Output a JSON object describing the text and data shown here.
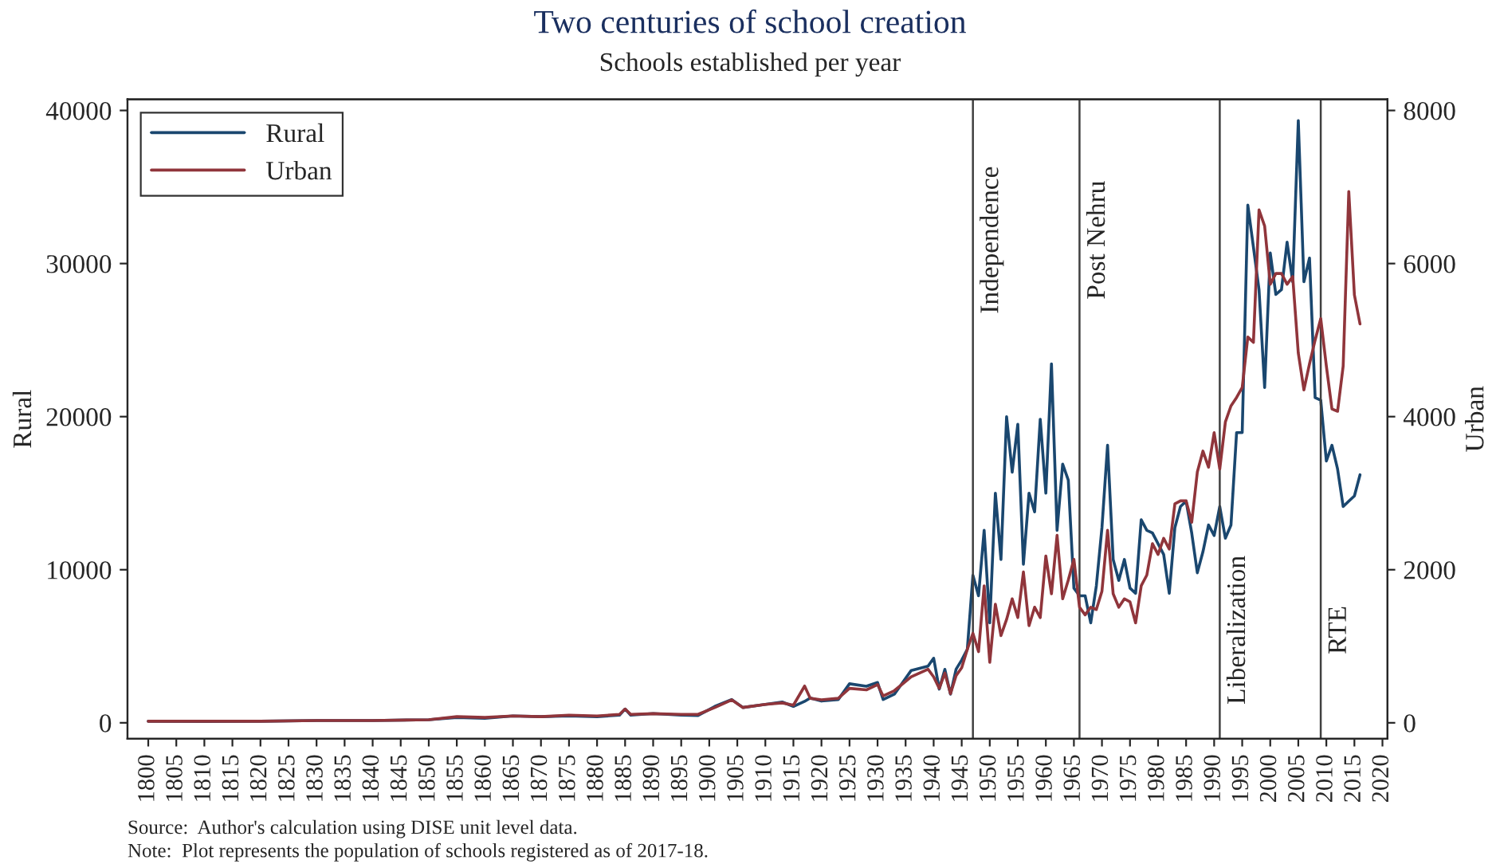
{
  "chart_data": {
    "type": "line",
    "title": "Two centuries of school creation",
    "subtitle": "Schools established per year",
    "ylabel": "Rural",
    "y2label": "Urban",
    "x": [
      1800,
      1810,
      1820,
      1830,
      1840,
      1850,
      1855,
      1860,
      1865,
      1870,
      1875,
      1880,
      1884,
      1885,
      1886,
      1890,
      1895,
      1898,
      1901,
      1904,
      1906,
      1910,
      1913,
      1915,
      1917,
      1918,
      1920,
      1923,
      1925,
      1928,
      1930,
      1931,
      1933,
      1936,
      1939,
      1940,
      1941,
      1942,
      1943,
      1944,
      1945,
      1946,
      1947,
      1948,
      1949,
      1950,
      1951,
      1952,
      1953,
      1954,
      1955,
      1956,
      1957,
      1958,
      1959,
      1960,
      1961,
      1962,
      1963,
      1964,
      1965,
      1966,
      1967,
      1968,
      1969,
      1970,
      1971,
      1972,
      1973,
      1974,
      1975,
      1976,
      1977,
      1978,
      1979,
      1980,
      1981,
      1982,
      1983,
      1984,
      1985,
      1986,
      1987,
      1988,
      1989,
      1990,
      1991,
      1992,
      1993,
      1994,
      1995,
      1996,
      1997,
      1998,
      1999,
      2000,
      2001,
      2002,
      2003,
      2004,
      2005,
      2006,
      2007,
      2008,
      2009,
      2010,
      2011,
      2012,
      2013,
      2014,
      2015,
      2016
    ],
    "series": [
      {
        "name": "Rural",
        "color": "#1a476f",
        "values": [
          100,
          80,
          100,
          150,
          150,
          200,
          350,
          300,
          450,
          400,
          450,
          400,
          500,
          900,
          500,
          600,
          500,
          480,
          1070,
          1520,
          1000,
          1200,
          1360,
          1070,
          1400,
          1620,
          1420,
          1520,
          2550,
          2390,
          2630,
          1520,
          1870,
          3420,
          3700,
          4220,
          2200,
          3490,
          1870,
          3500,
          4100,
          4800,
          9640,
          8300,
          12570,
          6530,
          15000,
          10670,
          20000,
          16370,
          19500,
          10360,
          15000,
          13780,
          19830,
          15000,
          23450,
          12570,
          16900,
          15850,
          8800,
          8300,
          8300,
          6530,
          8950,
          12750,
          18130,
          10670,
          9300,
          10670,
          8800,
          8460,
          13260,
          12570,
          12400,
          11700,
          11000,
          8460,
          12750,
          14130,
          14480,
          12400,
          9800,
          11170,
          12920,
          12230,
          14130,
          12060,
          12920,
          18960,
          18960,
          33820,
          31080,
          28290,
          21900,
          30700,
          27980,
          28290,
          31400,
          28810,
          39340,
          28810,
          30360,
          21240,
          21070,
          17100,
          18130,
          16580,
          14130,
          14480,
          14820,
          16200
        ]
      },
      {
        "name": "Urban",
        "color": "#90353b",
        "axis": "y2",
        "values": [
          20,
          20,
          20,
          30,
          30,
          40,
          80,
          70,
          90,
          80,
          100,
          90,
          110,
          180,
          110,
          120,
          110,
          110,
          200,
          300,
          200,
          240,
          260,
          230,
          480,
          320,
          300,
          320,
          450,
          430,
          500,
          350,
          420,
          600,
          700,
          600,
          450,
          650,
          380,
          616,
          720,
          960,
          1170,
          930,
          1790,
          790,
          1550,
          1140,
          1350,
          1620,
          1375,
          1970,
          1270,
          1510,
          1375,
          2180,
          1685,
          2450,
          1620,
          1865,
          2135,
          1510,
          1410,
          1510,
          1480,
          1720,
          2515,
          1685,
          1510,
          1620,
          1580,
          1305,
          1790,
          1930,
          2340,
          2200,
          2410,
          2270,
          2860,
          2900,
          2900,
          2620,
          3275,
          3550,
          3340,
          3790,
          3315,
          3930,
          4140,
          4250,
          4380,
          5040,
          4970,
          6700,
          6490,
          5730,
          5870,
          5870,
          5730,
          5830,
          4830,
          4350,
          4690,
          5000,
          5280,
          4660,
          4100,
          4070,
          4660,
          6940,
          5590,
          5210
        ]
      }
    ],
    "xlim": [
      1796.3,
      2020.9
    ],
    "xticks": [
      1800,
      1805,
      1810,
      1815,
      1820,
      1825,
      1830,
      1835,
      1840,
      1845,
      1850,
      1855,
      1860,
      1865,
      1870,
      1875,
      1880,
      1885,
      1890,
      1895,
      1900,
      1905,
      1910,
      1915,
      1920,
      1925,
      1930,
      1935,
      1940,
      1945,
      1950,
      1955,
      1960,
      1965,
      1970,
      1975,
      1980,
      1985,
      1990,
      1995,
      2000,
      2005,
      2010,
      2015,
      2020
    ],
    "ylim": [
      -1040,
      40725
    ],
    "yticks": [
      0,
      10000,
      20000,
      30000,
      40000
    ],
    "y2lim": [
      -208,
      8145
    ],
    "y2ticks": [
      0,
      2000,
      4000,
      6000,
      8000
    ],
    "ref_lines": [
      {
        "axis": "x",
        "value": 1947,
        "label": "Independence",
        "color": "#404040"
      },
      {
        "axis": "x",
        "value": 1966,
        "label": "Post Nehru",
        "color": "#404040"
      },
      {
        "axis": "x",
        "value": 1991,
        "label": "Liberalization",
        "color": "#404040"
      },
      {
        "axis": "x",
        "value": 2009,
        "label": "RTE",
        "color": "#404040"
      }
    ],
    "legend": "top left",
    "grid": false,
    "annotations": [
      "Source:  Author's calculation using DISE unit level data.",
      "Note:  Plot represents the population of schools registered as of 2017-18."
    ]
  }
}
